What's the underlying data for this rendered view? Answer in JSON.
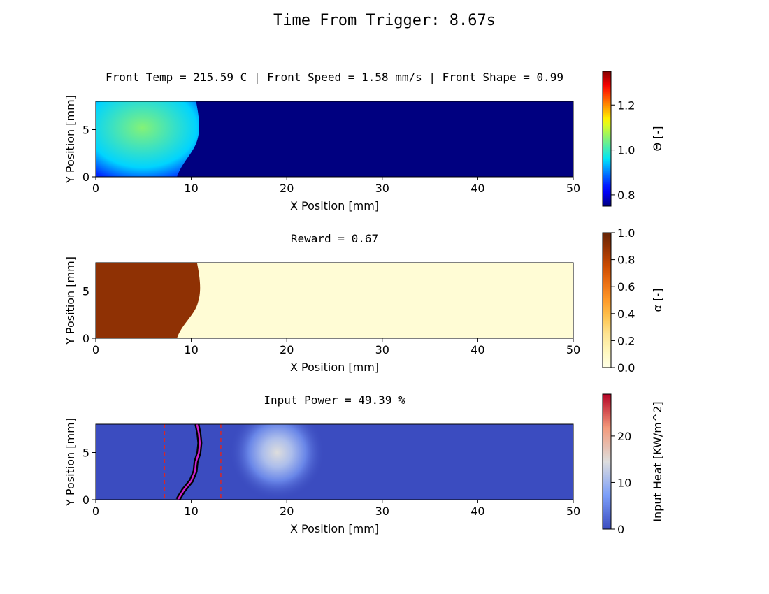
{
  "figure": {
    "suptitle": "Time From Trigger: 8.67s"
  },
  "chart_data": [
    {
      "type": "heatmap",
      "title": "Front Temp = 215.59 C | Front Speed = 1.58 mm/s | Front Shape = 0.99",
      "xlabel": "X Position [mm]",
      "ylabel": "Y Position [mm]",
      "xlim": [
        0,
        50
      ],
      "ylim": [
        0,
        8
      ],
      "xticks": [
        "0",
        "10",
        "20",
        "30",
        "40",
        "50"
      ],
      "yticks": [
        "0",
        "5"
      ],
      "colorbar": {
        "label": "Θ [-]",
        "cmap": "jet",
        "range": [
          0.75,
          1.35
        ],
        "ticks": [
          "0.8",
          "1.0",
          "1.2"
        ],
        "tick_values": [
          0.8,
          1.0,
          1.2
        ]
      },
      "background_value": 0.75,
      "hot_region_value": 1.05,
      "front_x_mm": [
        8.5,
        9.0,
        10.2,
        10.6,
        10.5
      ]
    },
    {
      "type": "heatmap",
      "title": "Reward = 0.67",
      "xlabel": "X Position [mm]",
      "ylabel": "Y Position [mm]",
      "xlim": [
        0,
        50
      ],
      "ylim": [
        0,
        8
      ],
      "xticks": [
        "0",
        "10",
        "20",
        "30",
        "40",
        "50"
      ],
      "yticks": [
        "0",
        "5"
      ],
      "colorbar": {
        "label": "α [-]",
        "cmap": "YlOrBr",
        "range": [
          0,
          1
        ],
        "ticks": [
          "0.0",
          "0.2",
          "0.4",
          "0.6",
          "0.8",
          "1.0"
        ],
        "tick_values": [
          0,
          0.2,
          0.4,
          0.6,
          0.8,
          1.0
        ]
      },
      "cured_value": 0.9,
      "uncured_value": 0.05,
      "front_x_mm": [
        8.5,
        9.0,
        10.4,
        10.7,
        10.6
      ]
    },
    {
      "type": "heatmap",
      "title": "Input Power = 49.39 %",
      "xlabel": "X Position [mm]",
      "ylabel": "Y Position [mm]",
      "xlim": [
        0,
        50
      ],
      "ylim": [
        0,
        8
      ],
      "xticks": [
        "0",
        "10",
        "20",
        "30",
        "40",
        "50"
      ],
      "yticks": [
        "0",
        "5"
      ],
      "colorbar": {
        "label": "Input Heat [KW/m^2]",
        "cmap": "coolwarm",
        "range": [
          0,
          29
        ],
        "ticks": [
          "0",
          "10",
          "20"
        ],
        "tick_values": [
          0,
          10,
          20
        ]
      },
      "heat_source": {
        "x_mm": 19,
        "y_mm": 5,
        "peak": 14.5
      },
      "dashed_lines_x_mm": [
        7.2,
        13.1
      ],
      "front_points": [
        {
          "x": 8.6,
          "y": 0.0
        },
        {
          "x": 9.2,
          "y": 1.0
        },
        {
          "x": 10.0,
          "y": 2.0
        },
        {
          "x": 10.4,
          "y": 3.0
        },
        {
          "x": 10.5,
          "y": 4.0
        },
        {
          "x": 10.8,
          "y": 5.0
        },
        {
          "x": 10.9,
          "y": 6.0
        },
        {
          "x": 10.8,
          "y": 7.0
        },
        {
          "x": 10.6,
          "y": 8.0
        }
      ],
      "colors": {
        "front_line": "#000000",
        "front_highlight": "#cc22cc",
        "dashed": "#d62728"
      }
    }
  ]
}
